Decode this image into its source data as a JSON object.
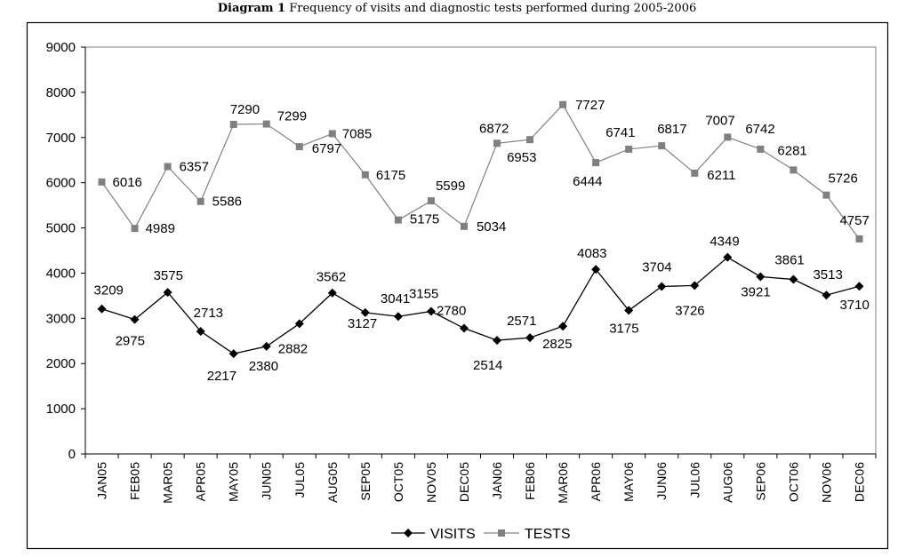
{
  "chart_data": {
    "type": "line",
    "title_bold": "Diagram 1",
    "title_rest": "Frequency of visits and diagnostic tests performed during 2005-2006",
    "xlabel": "",
    "ylabel": "",
    "ylim": [
      0,
      9000
    ],
    "yticks": [
      "0",
      "1000",
      "2000",
      "3000",
      "4000",
      "5000",
      "6000",
      "7000",
      "8000",
      "9000"
    ],
    "grid": false,
    "legend_position": "bottom",
    "categories": [
      "JAN05",
      "FEB05",
      "MAR05",
      "APR05",
      "MAY05",
      "JUN05",
      "JUL05",
      "AUG05",
      "SEP05",
      "OCT05",
      "NOV05",
      "DEC05",
      "JAN06",
      "FEB06",
      "MAR06",
      "APR06",
      "MAY06",
      "JUN06",
      "JUL06",
      "AUG06",
      "SEP06",
      "OCT06",
      "NOV06",
      "DEC06"
    ],
    "series": [
      {
        "name": "VISITS",
        "color": "#000000",
        "marker": "diamond",
        "values": [
          3209,
          2975,
          3575,
          2713,
          2217,
          2380,
          2882,
          3562,
          3127,
          3041,
          3155,
          2780,
          2514,
          2571,
          2825,
          4083,
          3175,
          3704,
          3726,
          4349,
          3921,
          3861,
          3513,
          3710
        ]
      },
      {
        "name": "TESTS",
        "color": "#808080",
        "marker": "square",
        "values": [
          6016,
          4989,
          6357,
          5586,
          7290,
          7299,
          6797,
          7085,
          6175,
          5175,
          5599,
          5034,
          6872,
          6953,
          7727,
          6444,
          6741,
          6817,
          6211,
          7007,
          6742,
          6281,
          5726,
          4757
        ]
      }
    ]
  }
}
